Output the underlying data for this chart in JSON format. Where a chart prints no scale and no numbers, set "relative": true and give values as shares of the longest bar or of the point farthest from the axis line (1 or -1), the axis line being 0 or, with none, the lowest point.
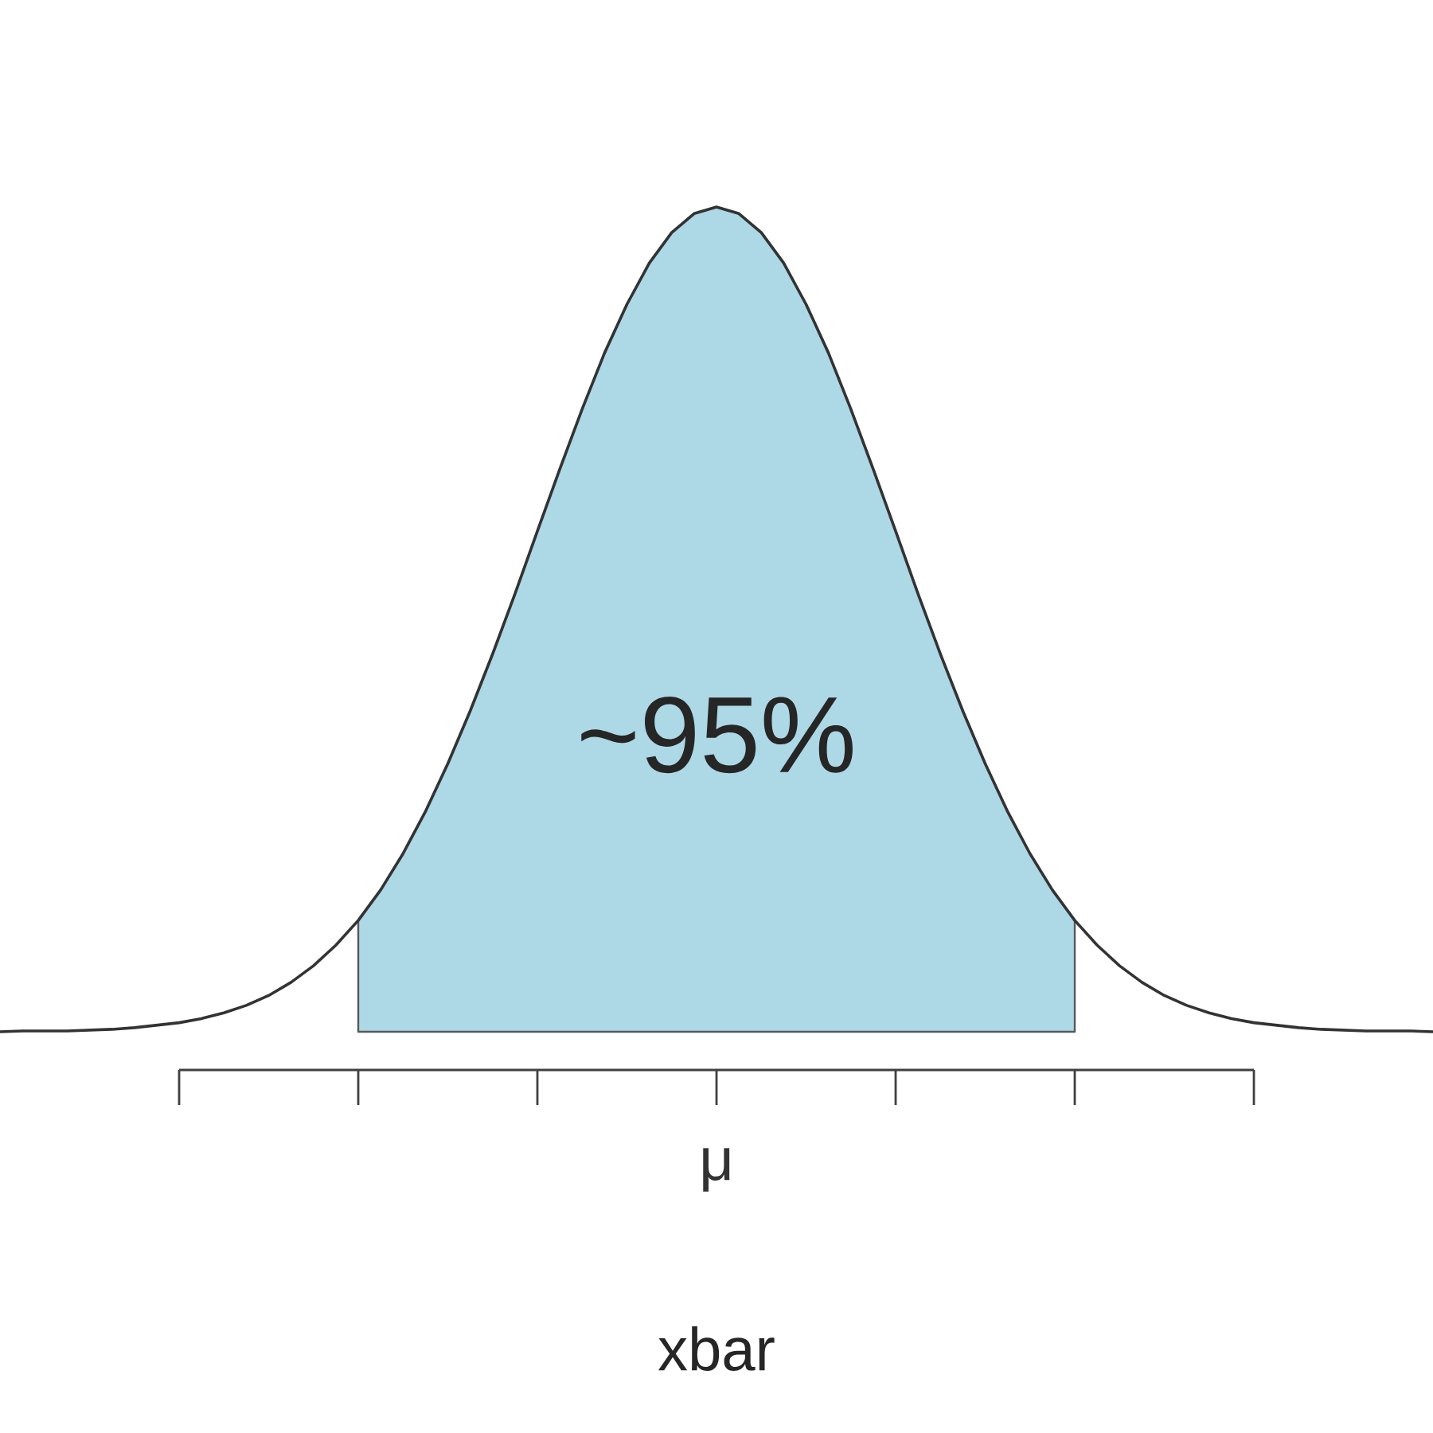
{
  "chart_data": {
    "type": "line",
    "relative": true,
    "xlabel": "xbar",
    "categories": [
      null,
      null,
      null,
      null,
      null,
      null,
      null,
      null,
      null,
      null,
      null,
      null,
      null,
      null,
      null,
      null,
      null,
      null,
      null,
      null,
      null,
      null,
      null,
      null,
      null,
      null,
      null,
      null,
      null,
      null,
      null,
      null,
      null,
      null,
      null,
      null,
      null,
      null,
      null,
      null,
      null,
      null,
      null,
      null,
      null,
      null,
      null,
      null,
      null,
      null,
      null,
      null,
      null,
      null,
      null,
      null,
      null,
      null,
      null,
      null,
      null,
      null,
      null,
      null,
      null
    ],
    "series": [
      {
        "type": "area",
        "color": "#add8e6",
        "values": [
          null,
          null,
          null,
          null,
          null,
          null,
          null,
          null,
          null,
          null,
          null,
          null,
          null,
          null,
          null,
          null,
          0.135,
          0.172,
          0.216,
          0.267,
          0.325,
          0.389,
          0.458,
          0.531,
          0.607,
          0.682,
          0.755,
          0.823,
          0.882,
          0.932,
          0.969,
          0.992,
          1,
          0.992,
          0.969,
          0.932,
          0.882,
          0.823,
          0.755,
          0.682,
          0.607,
          0.531,
          0.458,
          0.389,
          0.325,
          0.267,
          0.216,
          0.172,
          0.135,
          null,
          null,
          null,
          null,
          null,
          null,
          null,
          null,
          null,
          null,
          null,
          null,
          null,
          null,
          null,
          null
        ]
      },
      {
        "color": "#333333",
        "values": [
          0,
          0.001,
          0.001,
          0.001,
          0.002,
          0.003,
          0.005,
          0.008,
          0.011,
          0.016,
          0.023,
          0.032,
          0.044,
          0.06,
          0.08,
          0.105,
          0.135,
          0.172,
          0.216,
          0.267,
          0.325,
          0.389,
          0.458,
          0.531,
          0.607,
          0.682,
          0.755,
          0.823,
          0.882,
          0.932,
          0.969,
          0.992,
          1,
          0.992,
          0.969,
          0.932,
          0.882,
          0.823,
          0.755,
          0.682,
          0.607,
          0.531,
          0.458,
          0.389,
          0.325,
          0.267,
          0.216,
          0.172,
          0.135,
          0.105,
          0.08,
          0.06,
          0.044,
          0.032,
          0.023,
          0.016,
          0.011,
          0.008,
          0.005,
          0.003,
          0.002,
          0.001,
          0.001,
          0.001,
          0
        ]
      }
    ],
    "annotations": [
      "~95%",
      "μ"
    ]
  }
}
